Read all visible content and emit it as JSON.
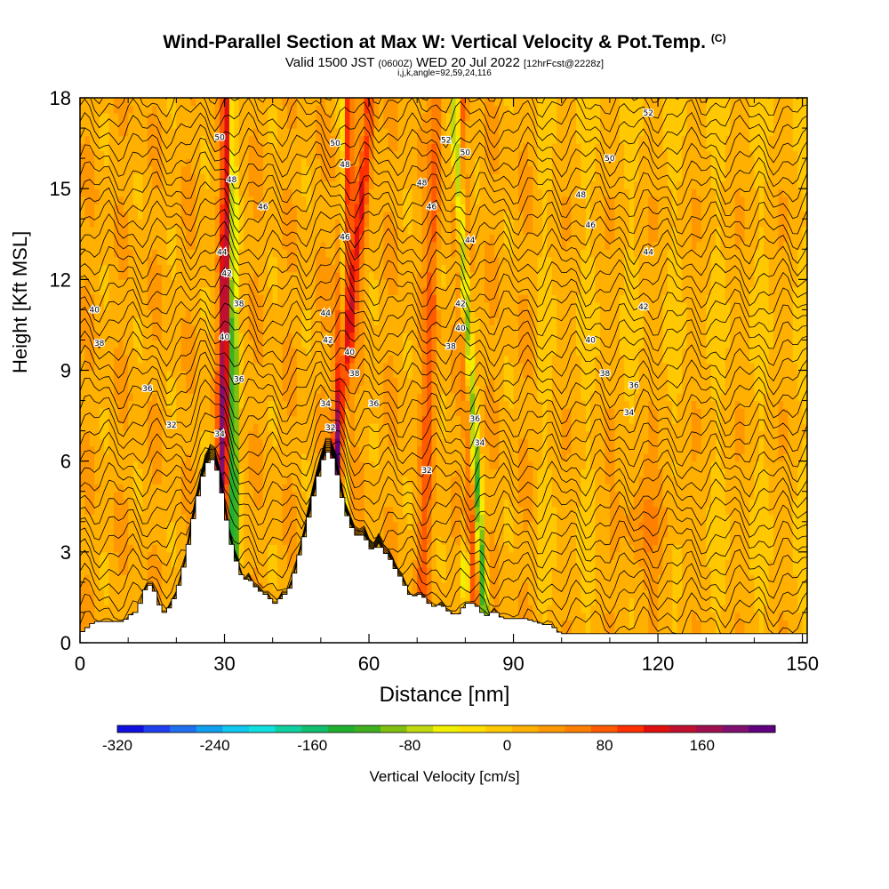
{
  "title": "Wind-Parallel Section at Max W: Vertical Velocity & Pot.Temp.",
  "title_mark": "(C)",
  "subtitle_main": "Valid 1500 JST",
  "subtitle_z": "(0600Z)",
  "subtitle_date": "WED 20 Jul 2022",
  "subtitle_fcst": "[12hrFcst@2228z]",
  "subsub": "i,j,k,angle=92,59,24,116",
  "chart_data": {
    "type": "heatmap",
    "title": "Wind-Parallel Section at Max W: Vertical Velocity & Pot.Temp.",
    "xlabel": "Distance [nm]",
    "ylabel": "Height [Kft MSL]",
    "xlim": [
      0,
      151
    ],
    "ylim": [
      0,
      18
    ],
    "xticks": [
      "0",
      "30",
      "60",
      "90",
      "120",
      "150"
    ],
    "yticks": [
      "0",
      "3",
      "6",
      "9",
      "12",
      "15",
      "18"
    ],
    "colorbar": {
      "label": "Vertical Velocity [cm/s]",
      "ticks": [
        "-320",
        "-240",
        "-160",
        "-80",
        "0",
        "80",
        "160"
      ],
      "range": [
        -320,
        220
      ],
      "colors": [
        "#1010e0",
        "#2040f0",
        "#2070f0",
        "#10a0f0",
        "#10c8f0",
        "#10e0e0",
        "#10d0a0",
        "#10c070",
        "#20b030",
        "#40b020",
        "#80c010",
        "#c0d810",
        "#f0f000",
        "#ffe000",
        "#ffc800",
        "#ffb000",
        "#ff9800",
        "#ff8000",
        "#ff5a00",
        "#ff3000",
        "#e01010",
        "#c01030",
        "#a01050",
        "#801070",
        "#600080"
      ]
    },
    "terrain_profile": {
      "x": [
        0,
        3,
        9,
        11,
        12,
        13,
        14,
        15,
        16,
        17,
        18,
        19,
        20,
        21,
        22,
        23,
        24,
        25,
        26,
        27,
        28,
        29,
        30,
        31,
        32,
        33,
        34,
        35,
        36,
        37,
        38,
        39,
        40,
        41,
        42,
        43,
        44,
        45,
        46,
        47,
        48,
        49,
        50,
        51,
        52,
        53,
        54,
        55,
        56,
        57,
        58,
        59,
        60,
        61,
        62,
        63,
        64,
        65,
        66,
        67,
        68,
        69,
        70,
        71,
        72,
        73,
        74,
        75,
        76,
        77,
        78,
        79,
        80,
        81,
        82,
        83,
        84,
        85,
        86,
        87,
        88,
        89,
        90,
        91,
        92,
        93,
        94,
        95,
        96,
        97,
        98,
        99,
        100,
        105,
        110,
        151
      ],
      "height_kft": [
        0.3,
        0.7,
        0.7,
        1.0,
        1.0,
        1.6,
        1.9,
        1.9,
        1.5,
        1.0,
        1.0,
        1.3,
        1.6,
        2.2,
        2.8,
        3.7,
        4.5,
        5.2,
        5.8,
        6.1,
        6.0,
        5.4,
        4.5,
        3.6,
        2.9,
        2.5,
        2.0,
        2.2,
        1.9,
        1.8,
        1.6,
        1.6,
        1.3,
        1.3,
        1.6,
        1.6,
        2.0,
        2.6,
        3.2,
        3.8,
        4.5,
        5.2,
        5.8,
        6.3,
        6.3,
        5.9,
        5.2,
        4.4,
        4.0,
        3.6,
        3.5,
        3.6,
        3.2,
        3.0,
        3.3,
        3.0,
        2.9,
        2.6,
        2.3,
        2.1,
        1.7,
        1.5,
        1.6,
        1.6,
        1.4,
        1.2,
        1.2,
        1.3,
        1.1,
        1.0,
        0.9,
        1.0,
        1.3,
        1.3,
        1.3,
        1.1,
        0.9,
        0.9,
        1.1,
        0.9,
        0.8,
        0.8,
        0.8,
        0.8,
        0.8,
        0.8,
        0.7,
        0.7,
        0.6,
        0.6,
        0.6,
        0.4,
        0.3,
        0.3,
        0.3,
        0.3
      ]
    },
    "updraft_bands": [
      {
        "x_base": 29,
        "x_top": 31,
        "peak_cm_s": 180
      },
      {
        "x_base": 54,
        "x_top": 55,
        "peak_cm_s": 200
      },
      {
        "x_base": 50,
        "x_top": 60,
        "peak_cm_s": 110
      },
      {
        "x_base": 71,
        "x_top": 74,
        "peak_cm_s": 80
      },
      {
        "x_base": 82,
        "x_top": 79,
        "peak_cm_s": 100
      }
    ],
    "downdraft_bands": [
      {
        "x_base": 32,
        "x_top": 31.5,
        "peak_cm_s": -170
      },
      {
        "x_base": 55,
        "x_top": 54.5,
        "peak_cm_s": -170
      },
      {
        "x_base": 84,
        "x_top": 78,
        "peak_cm_s": -140
      },
      {
        "x_base": 80,
        "x_top": 80,
        "peak_cm_s": -90
      }
    ],
    "isentropes_label_values": [
      "32",
      "34",
      "36",
      "38",
      "40",
      "42",
      "44",
      "46",
      "48",
      "50",
      "52"
    ],
    "isentrope_labels": [
      {
        "value": "40",
        "x": 3,
        "y": 11.0
      },
      {
        "value": "38",
        "x": 4,
        "y": 9.9
      },
      {
        "value": "36",
        "x": 14,
        "y": 8.4
      },
      {
        "value": "32",
        "x": 19,
        "y": 7.2
      },
      {
        "value": "34",
        "x": 29,
        "y": 6.9
      },
      {
        "value": "36",
        "x": 33,
        "y": 8.7
      },
      {
        "value": "38",
        "x": 33,
        "y": 11.2
      },
      {
        "value": "40",
        "x": 30,
        "y": 10.1
      },
      {
        "value": "42",
        "x": 30.5,
        "y": 12.2
      },
      {
        "value": "44",
        "x": 29.5,
        "y": 12.9
      },
      {
        "value": "48",
        "x": 31.5,
        "y": 15.3
      },
      {
        "value": "46",
        "x": 38,
        "y": 14.4
      },
      {
        "value": "50",
        "x": 29,
        "y": 16.7
      },
      {
        "value": "50",
        "x": 53,
        "y": 16.5
      },
      {
        "value": "48",
        "x": 55,
        "y": 15.8
      },
      {
        "value": "46",
        "x": 55,
        "y": 13.4
      },
      {
        "value": "44",
        "x": 51,
        "y": 10.9
      },
      {
        "value": "42",
        "x": 51.5,
        "y": 10.0
      },
      {
        "value": "40",
        "x": 56,
        "y": 9.6
      },
      {
        "value": "38",
        "x": 57,
        "y": 8.9
      },
      {
        "value": "36",
        "x": 61,
        "y": 7.9
      },
      {
        "value": "34",
        "x": 51,
        "y": 7.9
      },
      {
        "value": "32",
        "x": 52,
        "y": 7.1
      },
      {
        "value": "52",
        "x": 76,
        "y": 16.6
      },
      {
        "value": "50",
        "x": 80,
        "y": 16.2
      },
      {
        "value": "48",
        "x": 71,
        "y": 15.2
      },
      {
        "value": "46",
        "x": 73,
        "y": 14.4
      },
      {
        "value": "44",
        "x": 81,
        "y": 13.3
      },
      {
        "value": "42",
        "x": 79,
        "y": 11.2
      },
      {
        "value": "40",
        "x": 79,
        "y": 10.4
      },
      {
        "value": "38",
        "x": 77,
        "y": 9.8
      },
      {
        "value": "36",
        "x": 82,
        "y": 7.4
      },
      {
        "value": "34",
        "x": 83,
        "y": 6.6
      },
      {
        "value": "32",
        "x": 72,
        "y": 5.7
      },
      {
        "value": "52",
        "x": 118,
        "y": 17.5
      },
      {
        "value": "50",
        "x": 110,
        "y": 16.0
      },
      {
        "value": "48",
        "x": 104,
        "y": 14.8
      },
      {
        "value": "46",
        "x": 106,
        "y": 13.8
      },
      {
        "value": "44",
        "x": 118,
        "y": 12.9
      },
      {
        "value": "42",
        "x": 117,
        "y": 11.1
      },
      {
        "value": "40",
        "x": 106,
        "y": 10.0
      },
      {
        "value": "38",
        "x": 109,
        "y": 8.9
      },
      {
        "value": "36",
        "x": 115,
        "y": 8.5
      },
      {
        "value": "34",
        "x": 114,
        "y": 7.6
      }
    ]
  },
  "colors": {
    "background": "#ffffff",
    "terrain": "#ffffff",
    "contour": "#000000"
  }
}
